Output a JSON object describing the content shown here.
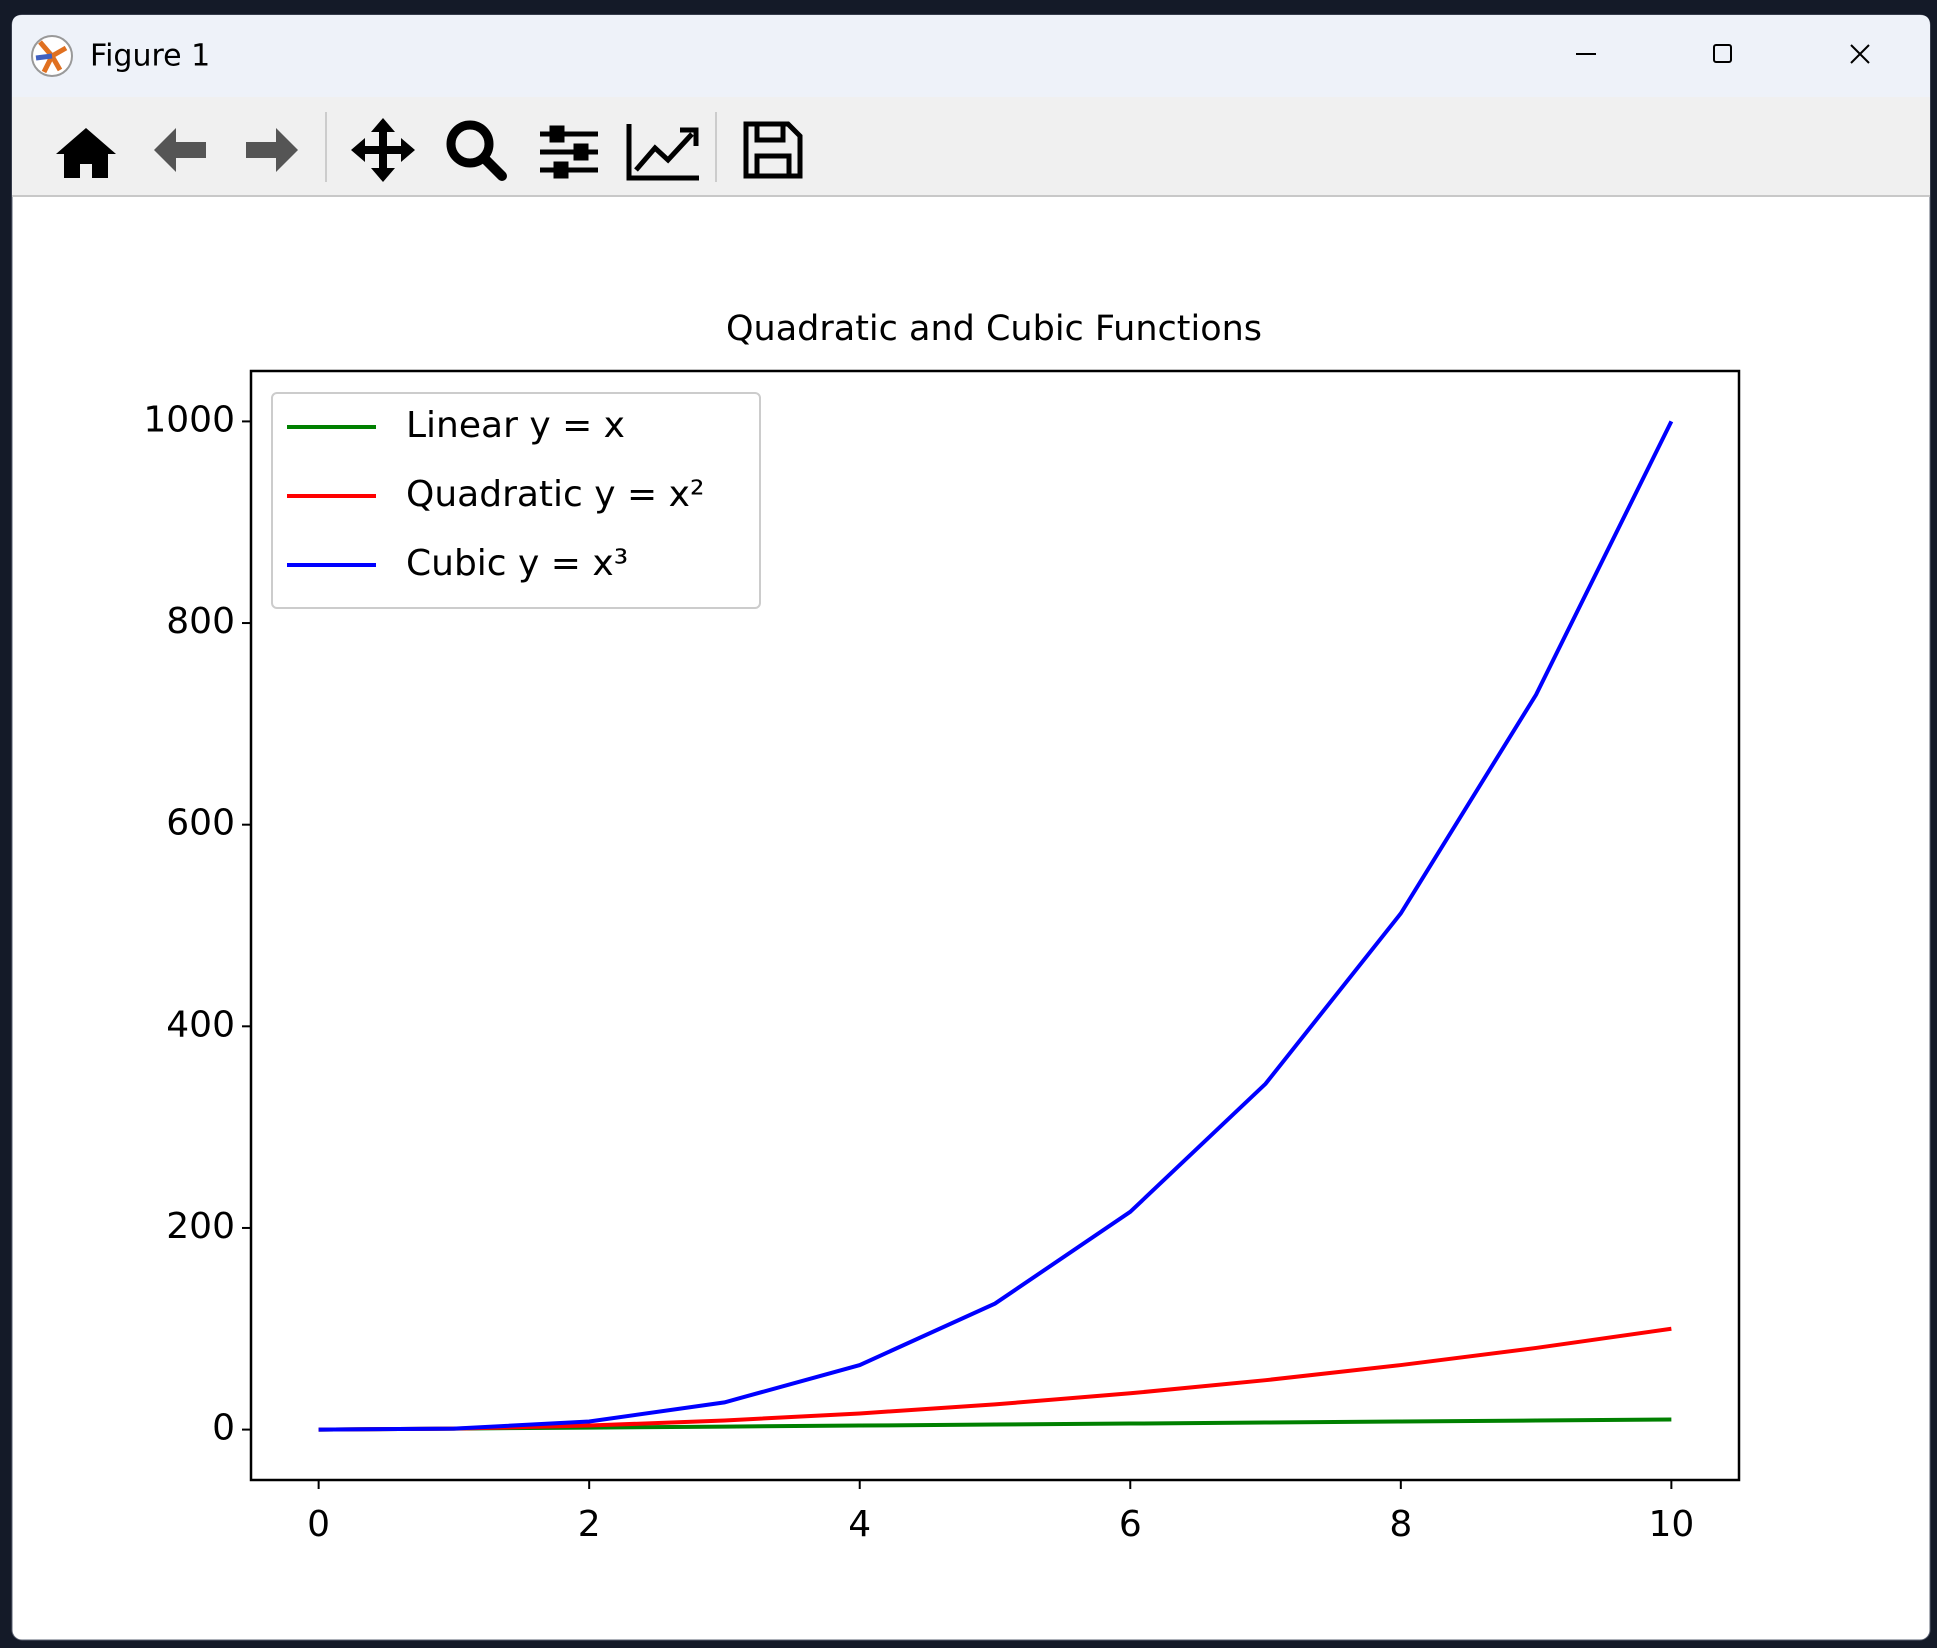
{
  "window": {
    "title": "Figure 1"
  },
  "chart_data": {
    "type": "line",
    "title": "Quadratic and Cubic Functions",
    "x": [
      0,
      1,
      2,
      3,
      4,
      5,
      6,
      7,
      8,
      9,
      10
    ],
    "series": [
      {
        "name": "Linear y = x",
        "color": "#008000",
        "values": [
          0,
          1,
          2,
          3,
          4,
          5,
          6,
          7,
          8,
          9,
          10
        ]
      },
      {
        "name": "Quadratic y = x²",
        "color": "#ff0000",
        "values": [
          0,
          1,
          4,
          9,
          16,
          25,
          36,
          49,
          64,
          81,
          100
        ]
      },
      {
        "name": "Cubic y = x³",
        "color": "#0000ff",
        "values": [
          0,
          1,
          8,
          27,
          64,
          125,
          216,
          343,
          512,
          729,
          1000
        ]
      }
    ],
    "xlim": [
      -0.5,
      10.5
    ],
    "ylim": [
      -50,
      1050
    ],
    "xticks": [
      0,
      2,
      4,
      6,
      8,
      10
    ],
    "yticks": [
      0,
      200,
      400,
      600,
      800,
      1000
    ],
    "legend": "upper left",
    "grid": false
  }
}
